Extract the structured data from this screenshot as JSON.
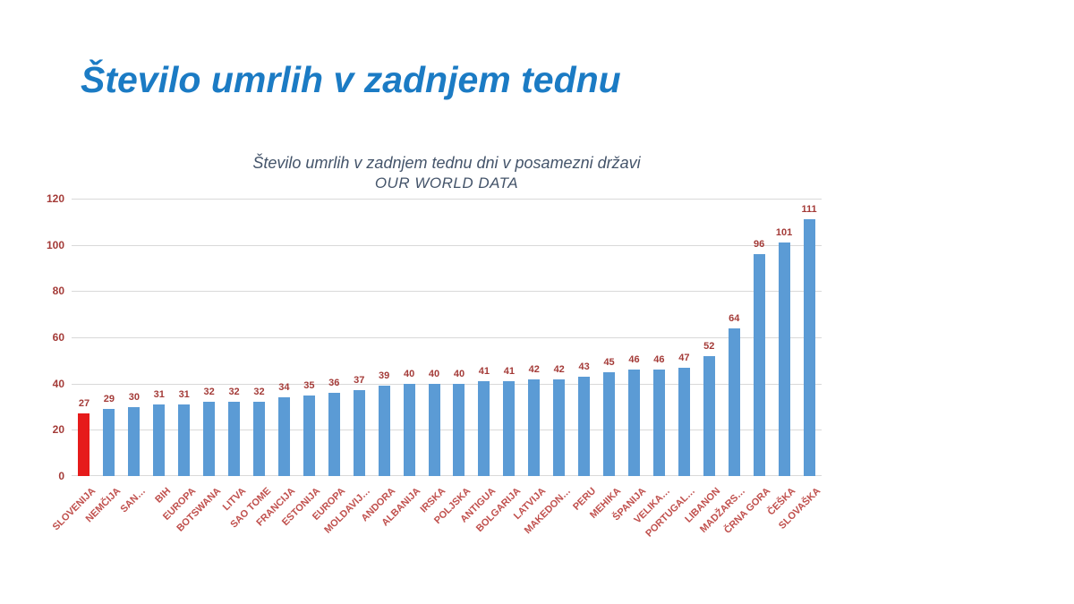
{
  "slide": {
    "title": "Število umrlih v zadnjem tednu"
  },
  "chart": {
    "title_line1": "Število umrlih v zadnjem tednu dni v posamezni državi",
    "title_line2": "OUR WORLD DATA"
  },
  "chart_data": {
    "type": "bar",
    "title": "Število umrlih v zadnjem tednu dni v posamezni državi",
    "subtitle": "OUR WORLD DATA",
    "categories": [
      "SLOVENIJA",
      "NEMČIJA",
      "SAN…",
      "BIH",
      "EUROPA",
      "BOTSWANA",
      "LITVA",
      "SAO TOME",
      "FRANCIJA",
      "ESTONIJA",
      "EUROPA",
      "MOLDAVIJ…",
      "ANDORA",
      "ALBANIJA",
      "IRSKA",
      "POLJSKA",
      "ANTIGUA",
      "BOLGARIJA",
      "LATVIJA",
      "MAKEDON…",
      "PERU",
      "MEHIKA",
      "ŠPANIJA",
      "VELIKA…",
      "PORTUGAL…",
      "LIBANON",
      "MADŽARS…",
      "ČRNA GORA",
      "ČEŠKA",
      "SLOVAŠKA"
    ],
    "values": [
      27,
      29,
      30,
      31,
      31,
      32,
      32,
      32,
      34,
      35,
      36,
      37,
      39,
      40,
      40,
      40,
      41,
      41,
      42,
      42,
      43,
      45,
      46,
      46,
      47,
      52,
      64,
      96,
      101,
      111
    ],
    "yticks": [
      0,
      20,
      40,
      60,
      80,
      100,
      120
    ],
    "ylim": [
      0,
      120
    ],
    "grid": true,
    "legend": "none",
    "colors": {
      "bar": "#5b9bd5",
      "highlight_bar": "#e61b1b",
      "value_label": "#a43b38",
      "ytick_label": "#a43b38",
      "category_label": "#c0504d",
      "gridline": "#d9d9d9",
      "slide_title": "#1b7bc4",
      "chart_title": "#44546a"
    },
    "highlight_index": 0
  }
}
